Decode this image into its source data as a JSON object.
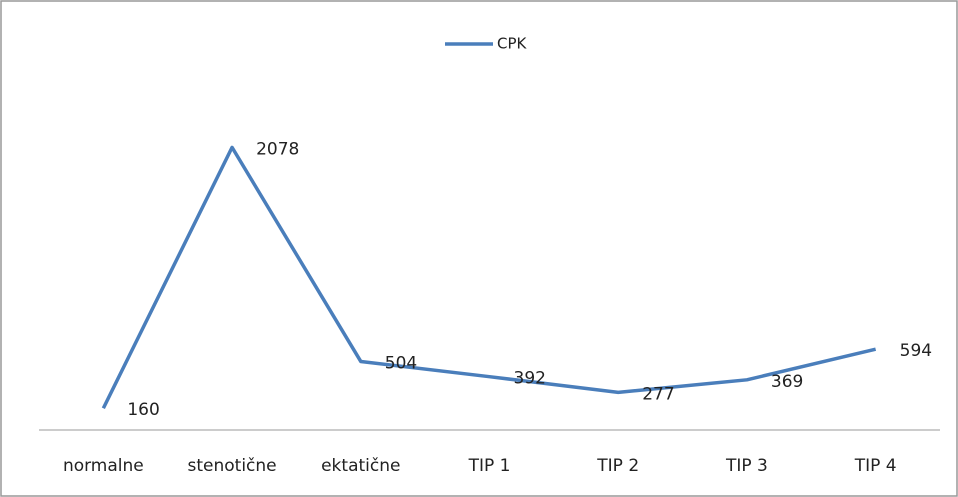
{
  "chart_data": {
    "type": "line",
    "categories": [
      "normalne",
      "stenotične",
      "ektatične",
      "TIP 1",
      "TIP 2",
      "TIP 3",
      "TIP 4"
    ],
    "series": [
      {
        "name": "CPK",
        "color": "#4a7ebb",
        "values": [
          160,
          2078,
          504,
          392,
          277,
          369,
          594
        ]
      }
    ],
    "ylim": [
      0,
      2500
    ],
    "legend": "top"
  }
}
